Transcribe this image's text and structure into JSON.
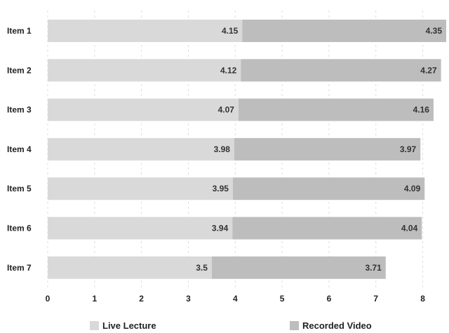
{
  "chart_data": {
    "type": "bar",
    "orientation": "horizontal",
    "stacked": true,
    "categories": [
      "Item 1",
      "Item 2",
      "Item 3",
      "Item 4",
      "Item 5",
      "Item 6",
      "Item 7"
    ],
    "series": [
      {
        "name": "Live Lecture",
        "color": "#d9d9d9",
        "values": [
          4.15,
          4.12,
          4.07,
          3.98,
          3.95,
          3.94,
          3.5
        ]
      },
      {
        "name": "Recorded Video",
        "color": "#bdbdbd",
        "values": [
          4.35,
          4.27,
          4.16,
          3.97,
          4.09,
          4.04,
          3.71
        ]
      }
    ],
    "x_ticks": [
      0,
      1,
      2,
      3,
      4,
      5,
      6,
      7,
      8
    ],
    "xlim": [
      0,
      8.5
    ],
    "grid": true,
    "legend_position": "bottom"
  }
}
